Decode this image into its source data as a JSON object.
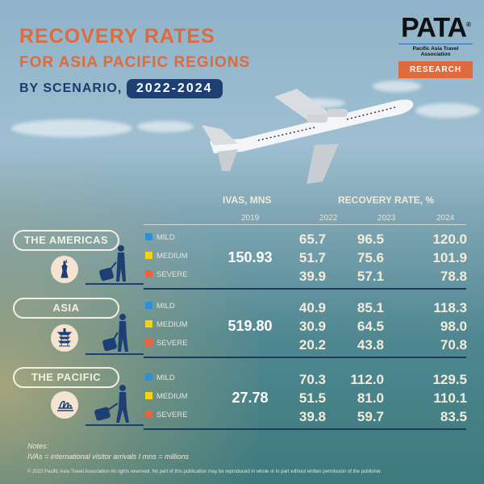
{
  "header": {
    "title_line1": "RECOVERY RATES",
    "title_line2": "FOR ASIA PACIFIC REGIONS",
    "subtitle": "BY SCENARIO,",
    "years_badge": "2022-2024"
  },
  "logo": {
    "wordmark": "PATA",
    "registered": "®",
    "tagline": "Pacific Asia Travel Association",
    "badge": "RESEARCH"
  },
  "colors": {
    "title": "#e06a3c",
    "navy": "#1e3f74",
    "mild": "#2e8fd6",
    "medium": "#f2d21b",
    "severe": "#e8643e"
  },
  "table": {
    "ivas_header": "IVAS, MNS",
    "ivas_year": "2019",
    "rate_header": "RECOVERY RATE, %",
    "years": [
      "2022",
      "2023",
      "2024"
    ]
  },
  "chart_data": {
    "type": "table",
    "title": "Recovery Rates for Asia Pacific Regions by Scenario, 2022-2024",
    "columns": [
      "IVAs 2019 (mns)",
      "2022",
      "2023",
      "2024"
    ],
    "scenarios": [
      "MILD",
      "MEDIUM",
      "SEVERE"
    ],
    "regions": [
      {
        "name": "THE AMERICAS",
        "icon": "statue-of-liberty-icon",
        "ivas_2019": "150.93",
        "rows": [
          {
            "scenario": "MILD",
            "values": [
              "65.7",
              "96.5",
              "120.0"
            ]
          },
          {
            "scenario": "MEDIUM",
            "values": [
              "51.7",
              "75.6",
              "101.9"
            ]
          },
          {
            "scenario": "SEVERE",
            "values": [
              "39.9",
              "57.1",
              "78.8"
            ]
          }
        ]
      },
      {
        "name": "ASIA",
        "icon": "pagoda-icon",
        "ivas_2019": "519.80",
        "rows": [
          {
            "scenario": "MILD",
            "values": [
              "40.9",
              "85.1",
              "118.3"
            ]
          },
          {
            "scenario": "MEDIUM",
            "values": [
              "30.9",
              "64.5",
              "98.0"
            ]
          },
          {
            "scenario": "SEVERE",
            "values": [
              "20.2",
              "43.8",
              "70.8"
            ]
          }
        ]
      },
      {
        "name": "THE PACIFIC",
        "icon": "opera-house-icon",
        "ivas_2019": "27.78",
        "rows": [
          {
            "scenario": "MILD",
            "values": [
              "70.3",
              "112.0",
              "129.5"
            ]
          },
          {
            "scenario": "MEDIUM",
            "values": [
              "51.5",
              "81.0",
              "110.1"
            ]
          },
          {
            "scenario": "SEVERE",
            "values": [
              "39.8",
              "59.7",
              "83.5"
            ]
          }
        ]
      }
    ]
  },
  "notes": {
    "label": "Notes:",
    "text": "IVAs = international visitor arrivals I mns = millions"
  },
  "footer": "© 2022 Pacific Asia Travel Association All rights reserved. No part of this publication may be reproduced in whole or in part without written permission of the publisher."
}
